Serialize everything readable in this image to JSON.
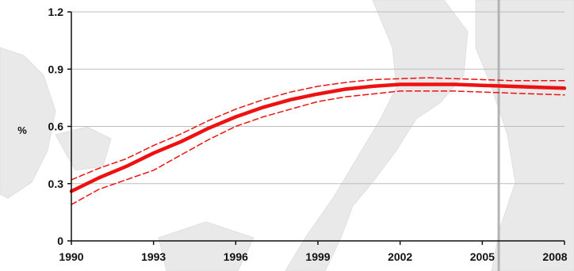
{
  "chart_data": {
    "type": "line",
    "title": "",
    "xlabel": "",
    "ylabel": "%",
    "xlim": [
      1990,
      2008
    ],
    "ylim": [
      0,
      1.2
    ],
    "x_ticks": [
      "1990",
      "1993",
      "1996",
      "1999",
      "2002",
      "2005",
      "2008"
    ],
    "y_ticks": [
      "0",
      "0.3",
      "0.6",
      "0.9",
      "1.2"
    ],
    "grid": "horizontal",
    "reference_line_x": 2005.6,
    "x": [
      1990,
      1991,
      1992,
      1993,
      1994,
      1995,
      1996,
      1997,
      1998,
      1999,
      2000,
      2001,
      2002,
      2003,
      2004,
      2005,
      2006,
      2007,
      2008
    ],
    "series": [
      {
        "values": [
          0.26,
          0.33,
          0.39,
          0.46,
          0.52,
          0.59,
          0.65,
          0.7,
          0.74,
          0.77,
          0.795,
          0.81,
          0.82,
          0.82,
          0.82,
          0.815,
          0.81,
          0.805,
          0.8
        ],
        "color": "#ee1111",
        "style": "solid"
      },
      {
        "values": [
          0.32,
          0.38,
          0.43,
          0.5,
          0.56,
          0.63,
          0.69,
          0.74,
          0.78,
          0.81,
          0.83,
          0.845,
          0.85,
          0.855,
          0.85,
          0.845,
          0.84,
          0.84,
          0.84
        ],
        "color": "#ee1111",
        "style": "dashed"
      },
      {
        "values": [
          0.19,
          0.27,
          0.32,
          0.37,
          0.45,
          0.53,
          0.6,
          0.65,
          0.69,
          0.73,
          0.755,
          0.77,
          0.785,
          0.785,
          0.785,
          0.78,
          0.775,
          0.77,
          0.765
        ],
        "color": "#ee1111",
        "style": "dashed"
      }
    ],
    "colors": {
      "axis": "#111111",
      "grid": "#bdbdbd",
      "reference_line": "#b3b3b3"
    }
  }
}
